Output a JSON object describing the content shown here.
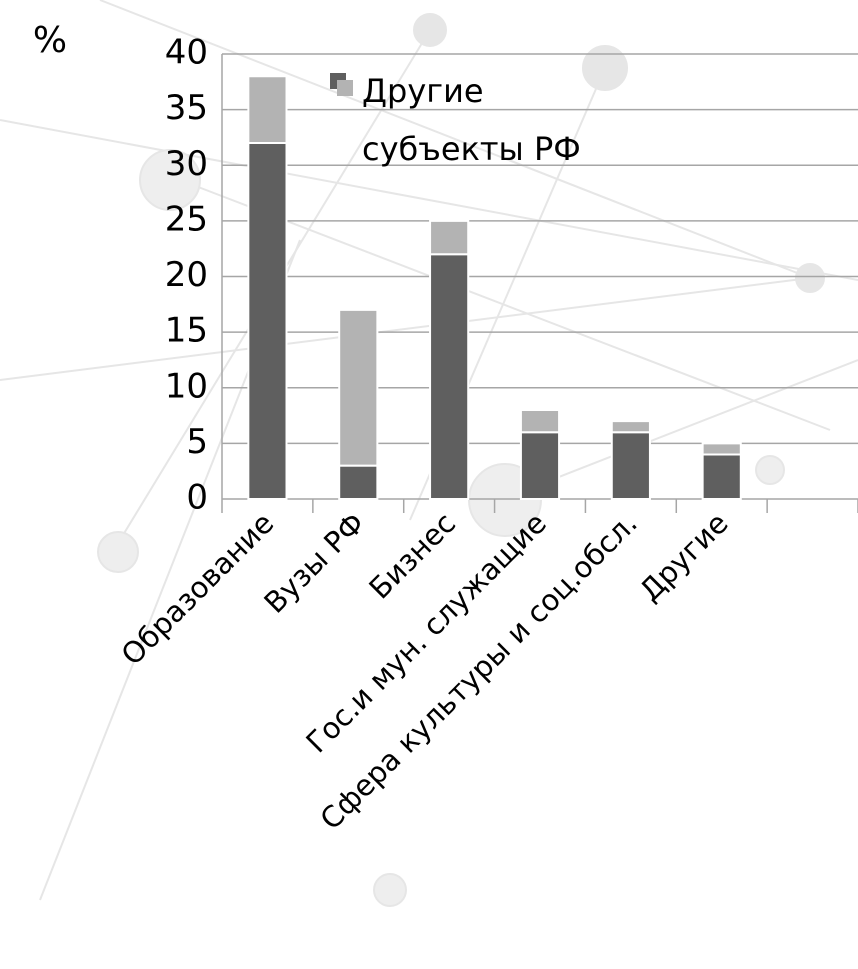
{
  "chart_data": {
    "type": "stacked-bar",
    "y_label": "%",
    "categories": [
      "Образование",
      "Вузы РФ",
      "Бизнес",
      "Гос.и мун. служащие",
      "Сфера культуры и соц.обсл.",
      "Другие",
      null
    ],
    "series": [
      {
        "color": "#5f5f5f",
        "values": [
          32,
          3,
          22,
          6,
          6,
          4,
          null
        ]
      },
      {
        "name": "Другие субъекты РФ",
        "color": "#b3b3b3",
        "values": [
          6,
          14,
          3,
          2,
          1,
          1,
          null
        ]
      }
    ],
    "ylim": [
      0,
      40
    ],
    "yticks": [
      0,
      5,
      10,
      15,
      20,
      25,
      30,
      35,
      40
    ],
    "grid": true
  }
}
